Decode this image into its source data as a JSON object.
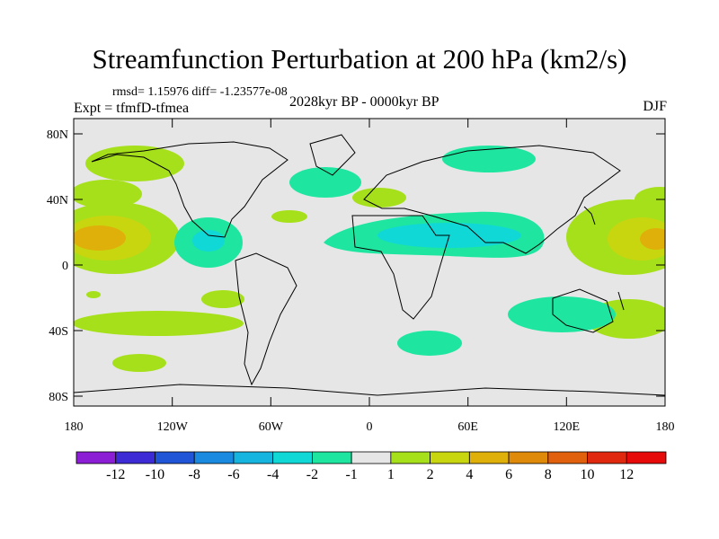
{
  "title": "Streamfunction Perturbation at 200 hPa (km2/s)",
  "stats": "rmsd= 1.15976 diff= -1.23577e-08",
  "expt": "Expt = tfmfD-tfmea",
  "period": "2028kyr BP - 0000kyr BP",
  "season": "DJF",
  "map": {
    "lon_range": [
      -180,
      180
    ],
    "lat_range": [
      -90,
      90
    ],
    "lat_ticks": [
      "80N",
      "40N",
      "0",
      "40S",
      "80S"
    ],
    "lon_ticks": [
      "180",
      "120W",
      "60W",
      "0",
      "60E",
      "120E",
      "180"
    ]
  },
  "colorbar": {
    "labels": [
      "-12",
      "-10",
      "-8",
      "-6",
      "-4",
      "-2",
      "-1",
      "1",
      "2",
      "4",
      "6",
      "8",
      "10",
      "12"
    ],
    "colors": [
      "#8c1fd6",
      "#3d2bd6",
      "#1f55d6",
      "#1a8ae0",
      "#16b5e0",
      "#10d8d6",
      "#1ee6a0",
      "#e6e6e6",
      "#a6e01a",
      "#c8d610",
      "#e0b00a",
      "#e08a0a",
      "#e0600e",
      "#e0280e",
      "#e60a0a"
    ]
  }
}
